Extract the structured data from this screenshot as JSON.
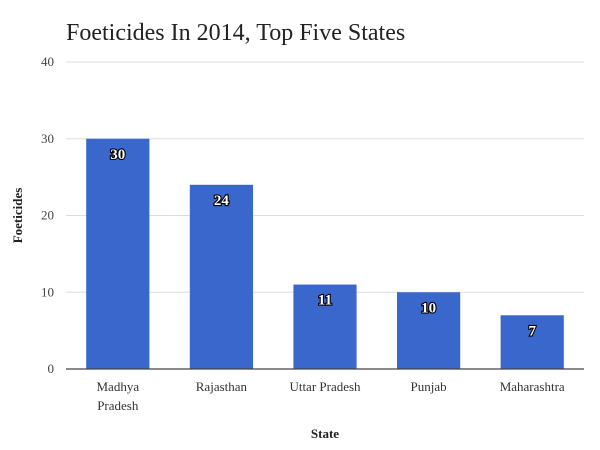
{
  "chart_data": {
    "type": "bar",
    "title": "Foeticides In 2014, Top Five States",
    "xlabel": "State",
    "ylabel": "Foeticides",
    "categories": [
      [
        "Madhya",
        "Pradesh"
      ],
      [
        "Rajasthan"
      ],
      [
        "Uttar Pradesh"
      ],
      [
        "Punjab"
      ],
      [
        "Maharashtra"
      ]
    ],
    "values": [
      30,
      24,
      11,
      10,
      7
    ],
    "ylim": [
      0,
      40
    ],
    "yticks": [
      0,
      10,
      20,
      30,
      40
    ],
    "grid": true,
    "colors": {
      "bar": "#3a67cc",
      "grid": "#dddddd",
      "baseline": "#444444"
    }
  }
}
